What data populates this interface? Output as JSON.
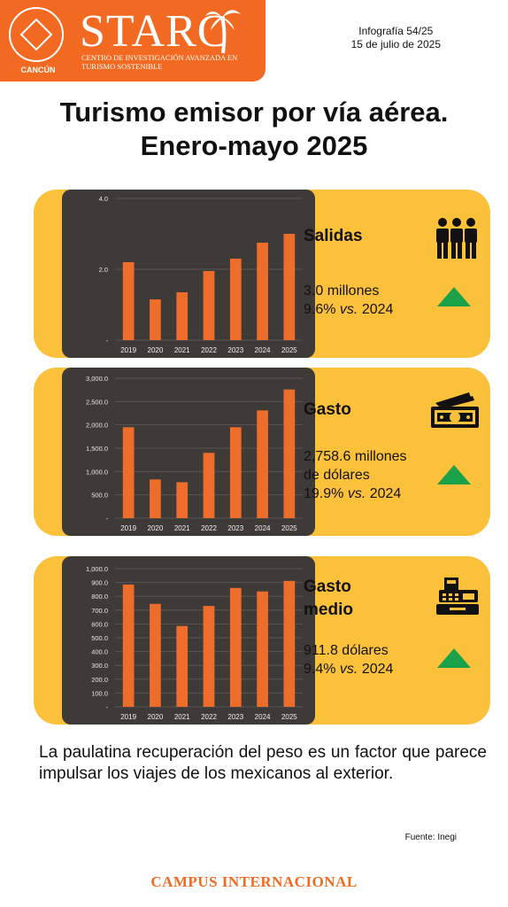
{
  "header": {
    "logo_text": "STARC",
    "logo_subtitle": "Centro de Investigación Avanzada en Turismo Sostenible",
    "seal_label": "CANCÚN",
    "infographic_number": "Infografía 54/25",
    "date": "15 de julio de 2025"
  },
  "title_line1": "Turismo emisor por vía aérea.",
  "title_line2": "Enero-mayo 2025",
  "panels": {
    "salidas": {
      "title": "Salidas",
      "value_line1": "3.0 millones",
      "value_line2_pct": "9.6%",
      "value_line2_vs": "vs.",
      "value_line2_year": "2024",
      "icon": "people-icon",
      "trend": "up"
    },
    "gasto": {
      "title": "Gasto",
      "value_line1": "2,758.6 millones",
      "value_line2": "de dólares",
      "value_line3_pct": "19.9%",
      "value_line3_vs": "vs.",
      "value_line3_year": "2024",
      "icon": "banknote-icon",
      "trend": "up"
    },
    "gasto_medio": {
      "title_line1": "Gasto",
      "title_line2": "medio",
      "value_line1": "911.8 dólares",
      "value_line2_pct": "9.4%",
      "value_line2_vs": "vs.",
      "value_line2_year": "2024",
      "icon": "cash-register-icon",
      "trend": "up"
    }
  },
  "caption": "La paulatina recuperación del peso es un factor que parece impulsar los viajes de los mexicanos al exterior.",
  "source": "Fuente: Inegi",
  "footer": "CAMPUS INTERNACIONAL",
  "colors": {
    "header": "#f26a21",
    "panel": "#fbc13a",
    "chart_bg": "#3d3a38",
    "bar": "#ef6d2b",
    "trend_up": "#1aa14a"
  },
  "chart_data": [
    {
      "type": "bar",
      "categories": [
        "2019",
        "2020",
        "2021",
        "2022",
        "2023",
        "2024",
        "2025"
      ],
      "values": [
        2.2,
        1.15,
        1.35,
        1.95,
        2.3,
        2.75,
        3.0
      ],
      "ylim": [
        0,
        4.0
      ],
      "yticks": [
        0,
        2.0,
        4.0
      ],
      "ytick_labels": [
        "-",
        "2.0",
        "4.0"
      ],
      "grid": true
    },
    {
      "type": "bar",
      "categories": [
        "2019",
        "2020",
        "2021",
        "2022",
        "2023",
        "2024",
        "2025"
      ],
      "values": [
        1950,
        830,
        770,
        1400,
        1950,
        2310,
        2758.6
      ],
      "ylim": [
        0,
        3000
      ],
      "yticks": [
        0,
        500,
        1000,
        1500,
        2000,
        2500,
        3000
      ],
      "ytick_labels": [
        "-",
        "500.0",
        "1,000.0",
        "1,500.0",
        "2,000.0",
        "2,500.0",
        "3,000.0"
      ],
      "grid": true
    },
    {
      "type": "bar",
      "categories": [
        "2019",
        "2020",
        "2021",
        "2022",
        "2023",
        "2024",
        "2025"
      ],
      "values": [
        885,
        745,
        585,
        730,
        860,
        835,
        911.8
      ],
      "ylim": [
        0,
        1000
      ],
      "yticks": [
        0,
        100,
        200,
        300,
        400,
        500,
        600,
        700,
        800,
        900,
        1000
      ],
      "ytick_labels": [
        "-",
        "100.0",
        "200.0",
        "300.0",
        "400.0",
        "500.0",
        "600.0",
        "700.0",
        "800.0",
        "900.0",
        "1,000.0"
      ],
      "grid": true
    }
  ]
}
